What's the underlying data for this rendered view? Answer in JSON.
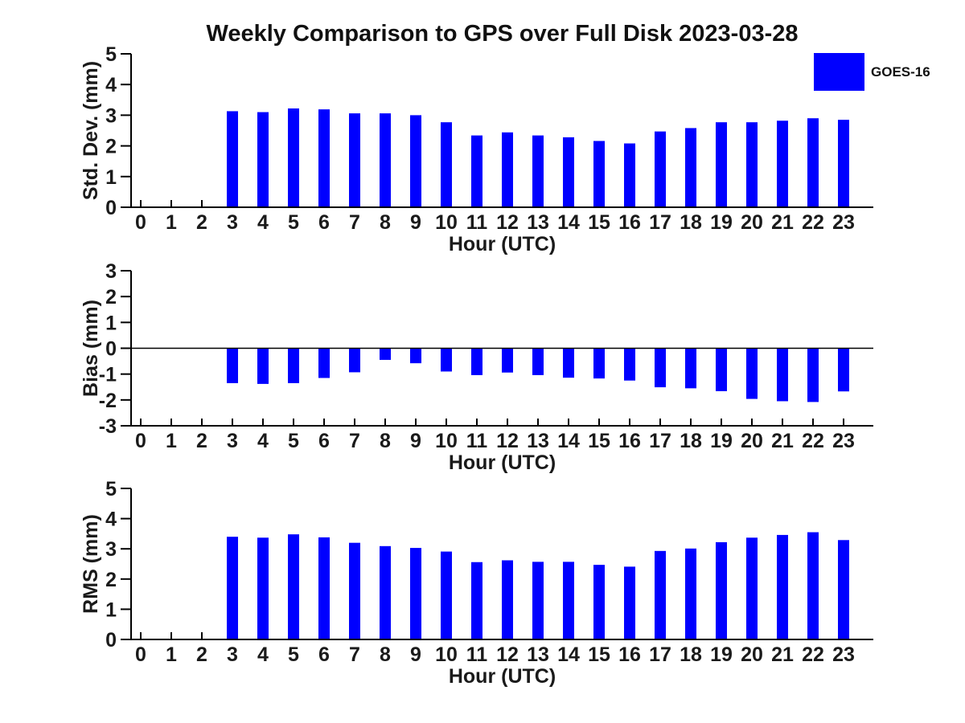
{
  "figure": {
    "title": "Weekly Comparison to GPS over Full Disk 2023-03-28",
    "legend": {
      "label": "GOES-16",
      "swatch_color": "#0000ff",
      "position": "upper right outside"
    },
    "bar_color": "#0000ff",
    "axis_color": "#000000",
    "text_color": "#1a1a1a"
  },
  "chart_data": [
    {
      "id": "stddev",
      "type": "bar",
      "title": "Weekly Comparison to GPS over Full Disk 2023-03-28",
      "series_name": "GOES-16",
      "xlabel": "Hour (UTC)",
      "ylabel": "Std. Dev. (mm)",
      "ylim": [
        0,
        5
      ],
      "yticks": [
        0,
        1,
        2,
        3,
        4,
        5
      ],
      "grid": false,
      "zero_line": false,
      "categories": [
        0,
        1,
        2,
        3,
        4,
        5,
        6,
        7,
        8,
        9,
        10,
        11,
        12,
        13,
        14,
        15,
        16,
        17,
        18,
        19,
        20,
        21,
        22,
        23
      ],
      "values": [
        null,
        null,
        null,
        3.13,
        3.1,
        3.22,
        3.19,
        3.06,
        3.06,
        3.0,
        2.77,
        2.34,
        2.44,
        2.34,
        2.28,
        2.16,
        2.08,
        2.47,
        2.58,
        2.77,
        2.77,
        2.82,
        2.9,
        2.85
      ]
    },
    {
      "id": "bias",
      "type": "bar",
      "title": "",
      "series_name": "GOES-16",
      "xlabel": "Hour (UTC)",
      "ylabel": "Bias (mm)",
      "ylim": [
        -3,
        3
      ],
      "yticks": [
        -3,
        -2,
        -1,
        0,
        1,
        2,
        3
      ],
      "grid": false,
      "zero_line": true,
      "categories": [
        0,
        1,
        2,
        3,
        4,
        5,
        6,
        7,
        8,
        9,
        10,
        11,
        12,
        13,
        14,
        15,
        16,
        17,
        18,
        19,
        20,
        21,
        22,
        23
      ],
      "values": [
        null,
        null,
        null,
        -1.35,
        -1.38,
        -1.35,
        -1.15,
        -0.93,
        -0.45,
        -0.58,
        -0.9,
        -1.04,
        -0.94,
        -1.04,
        -1.14,
        -1.17,
        -1.25,
        -1.51,
        -1.55,
        -1.66,
        -1.96,
        -2.05,
        -2.08,
        -1.67
      ]
    },
    {
      "id": "rms",
      "type": "bar",
      "title": "",
      "series_name": "GOES-16",
      "xlabel": "Hour (UTC)",
      "ylabel": "RMS (mm)",
      "ylim": [
        0,
        5
      ],
      "yticks": [
        0,
        1,
        2,
        3,
        4,
        5
      ],
      "grid": false,
      "zero_line": false,
      "categories": [
        0,
        1,
        2,
        3,
        4,
        5,
        6,
        7,
        8,
        9,
        10,
        11,
        12,
        13,
        14,
        15,
        16,
        17,
        18,
        19,
        20,
        21,
        22,
        23
      ],
      "values": [
        null,
        null,
        null,
        3.4,
        3.37,
        3.48,
        3.38,
        3.2,
        3.09,
        3.03,
        2.91,
        2.56,
        2.62,
        2.57,
        2.57,
        2.47,
        2.41,
        2.93,
        3.01,
        3.22,
        3.37,
        3.46,
        3.55,
        3.29
      ]
    }
  ]
}
